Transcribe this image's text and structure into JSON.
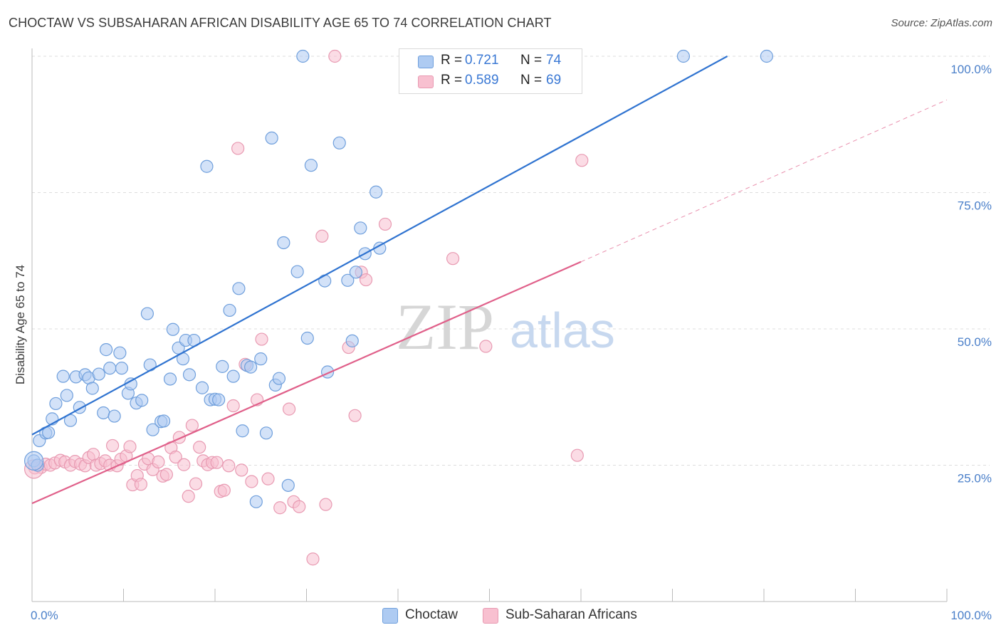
{
  "title": "CHOCTAW VS SUBSAHARAN AFRICAN DISABILITY AGE 65 TO 74 CORRELATION CHART",
  "source": "Source: ZipAtlas.com",
  "watermark": {
    "zip": "ZIP",
    "atlas": "atlas"
  },
  "legend": {
    "rows": [
      {
        "r_label": "R =",
        "r_value": "0.721",
        "n_label": "N =",
        "n_value": "74"
      },
      {
        "r_label": "R =",
        "r_value": "0.589",
        "n_label": "N =",
        "n_value": "69"
      }
    ]
  },
  "bottom_legend": [
    "Choctaw",
    "Sub-Saharan Africans"
  ],
  "colors": {
    "blue_fill": "#aecbf2",
    "blue_stroke": "#6f9fdc",
    "blue_line": "#2f73d0",
    "pink_fill": "#f8c0d0",
    "pink_stroke": "#e89ab2",
    "pink_line": "#e0608a",
    "grid": "#dddddd",
    "axis_label": "#4a7fc9"
  },
  "chart_data": {
    "type": "scatter",
    "title": "CHOCTAW VS SUBSAHARAN AFRICAN DISABILITY AGE 65 TO 74 CORRELATION CHART",
    "xlabel": "",
    "ylabel": "Disability Age 65 to 74",
    "xlim": [
      0,
      100
    ],
    "ylim": [
      0,
      100
    ],
    "x_tick_labels": [
      "0.0%",
      "100.0%"
    ],
    "y_ticks": [
      25,
      50,
      75,
      100
    ],
    "y_tick_labels": [
      "25.0%",
      "50.0%",
      "75.0%",
      "100.0%"
    ],
    "grid": true,
    "legend_position": "top-center",
    "series": [
      {
        "name": "Choctaw",
        "R": 0.721,
        "N": 74,
        "trend": {
          "x0": 0,
          "y0": 30.6,
          "x1": 76,
          "y1": 100
        },
        "points": [
          [
            0.2,
            25.8
          ],
          [
            0.6,
            25.0
          ],
          [
            0.8,
            29.5
          ],
          [
            1.5,
            30.9
          ],
          [
            1.8,
            31.0
          ],
          [
            2.2,
            33.5
          ],
          [
            2.6,
            36.3
          ],
          [
            3.4,
            41.3
          ],
          [
            3.8,
            37.8
          ],
          [
            4.2,
            33.2
          ],
          [
            4.8,
            41.2
          ],
          [
            5.2,
            35.6
          ],
          [
            5.8,
            41.6
          ],
          [
            6.2,
            41.0
          ],
          [
            6.6,
            39.1
          ],
          [
            7.3,
            41.7
          ],
          [
            7.8,
            34.6
          ],
          [
            8.1,
            46.2
          ],
          [
            8.5,
            42.8
          ],
          [
            9.0,
            34.0
          ],
          [
            9.6,
            45.6
          ],
          [
            9.8,
            42.8
          ],
          [
            10.5,
            38.2
          ],
          [
            10.8,
            39.9
          ],
          [
            11.4,
            36.4
          ],
          [
            12.0,
            36.9
          ],
          [
            12.6,
            52.8
          ],
          [
            12.9,
            43.4
          ],
          [
            13.2,
            31.5
          ],
          [
            14.1,
            33.0
          ],
          [
            14.4,
            33.1
          ],
          [
            15.1,
            40.8
          ],
          [
            15.4,
            49.9
          ],
          [
            16.0,
            46.5
          ],
          [
            16.5,
            44.5
          ],
          [
            16.8,
            47.9
          ],
          [
            17.2,
            41.6
          ],
          [
            17.7,
            47.9
          ],
          [
            18.6,
            39.2
          ],
          [
            19.1,
            79.8
          ],
          [
            19.5,
            37.0
          ],
          [
            20.0,
            37.1
          ],
          [
            20.4,
            37.0
          ],
          [
            20.8,
            43.1
          ],
          [
            21.6,
            53.4
          ],
          [
            22.0,
            41.3
          ],
          [
            22.6,
            57.4
          ],
          [
            23.0,
            31.3
          ],
          [
            23.5,
            43.3
          ],
          [
            23.9,
            43.0
          ],
          [
            24.5,
            18.3
          ],
          [
            25.0,
            44.5
          ],
          [
            25.6,
            30.9
          ],
          [
            26.2,
            85.0
          ],
          [
            26.6,
            39.7
          ],
          [
            27.0,
            40.9
          ],
          [
            27.5,
            65.8
          ],
          [
            28.0,
            21.3
          ],
          [
            29.0,
            60.5
          ],
          [
            29.6,
            100.0
          ],
          [
            30.1,
            48.3
          ],
          [
            30.5,
            80.0
          ],
          [
            32.0,
            58.8
          ],
          [
            32.3,
            42.1
          ],
          [
            33.6,
            84.1
          ],
          [
            34.5,
            58.9
          ],
          [
            35.0,
            47.8
          ],
          [
            35.4,
            60.4
          ],
          [
            35.9,
            68.5
          ],
          [
            36.4,
            63.8
          ],
          [
            37.6,
            75.1
          ],
          [
            38.0,
            64.8
          ],
          [
            71.2,
            100.0
          ],
          [
            80.3,
            100.0
          ]
        ]
      },
      {
        "name": "Sub-Saharan Africans",
        "R": 0.589,
        "N": 69,
        "trend": {
          "x0": 0,
          "y0": 18.0,
          "x1": 60,
          "y1": 62.3
        },
        "trend_extension": {
          "x0": 60,
          "y0": 62.3,
          "x1": 100,
          "y1": 92.0
        },
        "points": [
          [
            0.3,
            24.5
          ],
          [
            1.0,
            24.6
          ],
          [
            1.5,
            25.2
          ],
          [
            2.0,
            25.0
          ],
          [
            2.5,
            25.4
          ],
          [
            3.1,
            25.9
          ],
          [
            3.6,
            25.6
          ],
          [
            4.2,
            25.0
          ],
          [
            4.7,
            25.7
          ],
          [
            5.3,
            25.2
          ],
          [
            5.8,
            24.9
          ],
          [
            6.2,
            26.4
          ],
          [
            6.7,
            27.0
          ],
          [
            7.0,
            25.0
          ],
          [
            7.5,
            25.3
          ],
          [
            8.0,
            25.8
          ],
          [
            8.5,
            25.0
          ],
          [
            8.8,
            28.6
          ],
          [
            9.3,
            24.9
          ],
          [
            9.7,
            26.1
          ],
          [
            10.3,
            26.7
          ],
          [
            10.7,
            28.4
          ],
          [
            11.0,
            21.4
          ],
          [
            11.5,
            23.1
          ],
          [
            11.9,
            21.5
          ],
          [
            12.3,
            25.2
          ],
          [
            12.7,
            26.2
          ],
          [
            13.2,
            24.2
          ],
          [
            13.8,
            25.6
          ],
          [
            14.3,
            23.0
          ],
          [
            14.7,
            23.3
          ],
          [
            15.2,
            28.2
          ],
          [
            15.7,
            26.5
          ],
          [
            16.1,
            30.1
          ],
          [
            16.6,
            25.1
          ],
          [
            17.1,
            19.3
          ],
          [
            17.5,
            32.3
          ],
          [
            17.9,
            21.6
          ],
          [
            18.3,
            28.3
          ],
          [
            18.7,
            25.8
          ],
          [
            19.2,
            25.1
          ],
          [
            19.7,
            25.5
          ],
          [
            20.2,
            25.5
          ],
          [
            20.6,
            20.2
          ],
          [
            21.0,
            20.4
          ],
          [
            21.5,
            24.9
          ],
          [
            22.0,
            35.9
          ],
          [
            22.5,
            83.1
          ],
          [
            22.9,
            24.1
          ],
          [
            23.3,
            43.5
          ],
          [
            24.0,
            22.0
          ],
          [
            24.6,
            37.0
          ],
          [
            25.1,
            48.1
          ],
          [
            25.8,
            22.5
          ],
          [
            27.1,
            17.2
          ],
          [
            28.1,
            35.3
          ],
          [
            28.6,
            18.3
          ],
          [
            29.2,
            17.4
          ],
          [
            30.7,
            7.8
          ],
          [
            31.7,
            67.0
          ],
          [
            32.1,
            17.8
          ],
          [
            33.1,
            100.0
          ],
          [
            34.6,
            46.6
          ],
          [
            35.3,
            34.1
          ],
          [
            36.0,
            60.4
          ],
          [
            36.5,
            59.0
          ],
          [
            38.6,
            69.2
          ],
          [
            46.0,
            62.9
          ],
          [
            49.6,
            46.8
          ]
        ],
        "extra_points": [
          [
            60.1,
            80.9
          ],
          [
            59.6,
            26.8
          ]
        ]
      }
    ]
  }
}
